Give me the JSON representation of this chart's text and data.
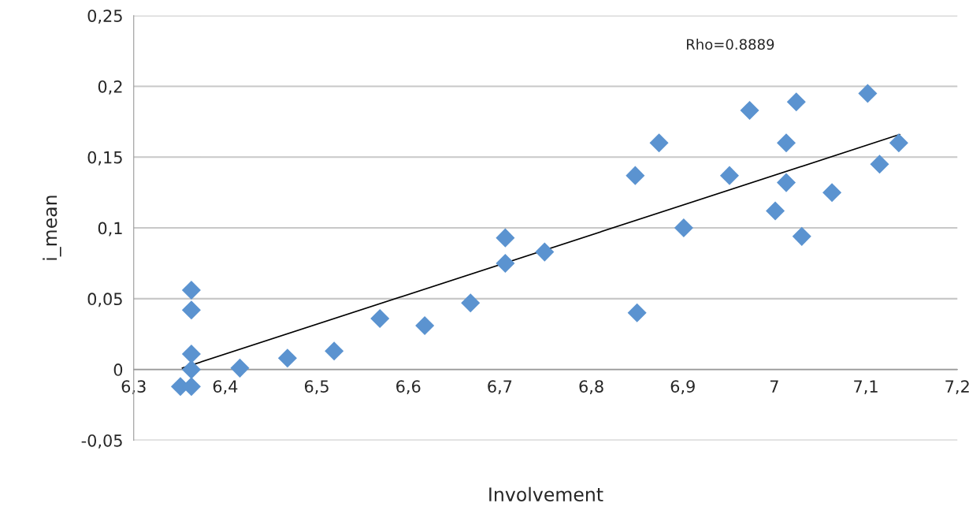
{
  "chart_data": {
    "type": "scatter",
    "xlabel": "Involvement",
    "ylabel": "i_mean",
    "annotations": [
      "Rho=0.8889"
    ],
    "series": [
      {
        "color": "#5b93d0",
        "marker": "diamond",
        "x": [
          6.351,
          6.363,
          6.363,
          6.363,
          6.363,
          6.363,
          6.416,
          6.468,
          6.519,
          6.569,
          6.618,
          6.668,
          6.706,
          6.706,
          6.749,
          6.848,
          6.85,
          6.874,
          6.901,
          6.951,
          6.973,
          7.001,
          7.013,
          7.013,
          7.024,
          7.03,
          7.063,
          7.102,
          7.115,
          7.136
        ],
        "values": [
          -0.012,
          -0.012,
          0.0,
          0.011,
          0.042,
          0.056,
          0.001,
          0.008,
          0.013,
          0.036,
          0.031,
          0.047,
          0.093,
          0.075,
          0.083,
          0.137,
          0.04,
          0.16,
          0.1,
          0.137,
          0.183,
          0.112,
          0.16,
          0.132,
          0.189,
          0.094,
          0.125,
          0.195,
          0.145,
          0.16
        ]
      },
      {
        "type": "line",
        "color": "#000000",
        "line_style": "solid",
        "x": [
          6.353,
          7.137
        ],
        "values": [
          0.001,
          0.166
        ]
      }
    ],
    "xlim": [
      6.3,
      7.2
    ],
    "ylim": [
      -0.05,
      0.25
    ],
    "xticks": [
      {
        "value": 6.3,
        "label": "6,3"
      },
      {
        "value": 6.4,
        "label": "6,4"
      },
      {
        "value": 6.5,
        "label": "6,5"
      },
      {
        "value": 6.6,
        "label": "6,6"
      },
      {
        "value": 6.7,
        "label": "6,7"
      },
      {
        "value": 6.8,
        "label": "6,8"
      },
      {
        "value": 6.9,
        "label": "6,9"
      },
      {
        "value": 7,
        "label": "7"
      },
      {
        "value": 7.1,
        "label": "7,1"
      },
      {
        "value": 7.2,
        "label": "7,2"
      }
    ],
    "yticks": [
      {
        "value": -0.05,
        "label": "-0,05"
      },
      {
        "value": 0,
        "label": "0"
      },
      {
        "value": 0.05,
        "label": "0,05"
      },
      {
        "value": 0.1,
        "label": "0,1"
      },
      {
        "value": 0.15,
        "label": "0,15"
      },
      {
        "value": 0.2,
        "label": "0,2"
      },
      {
        "value": 0.25,
        "label": "0,25"
      }
    ],
    "grid": "y"
  }
}
